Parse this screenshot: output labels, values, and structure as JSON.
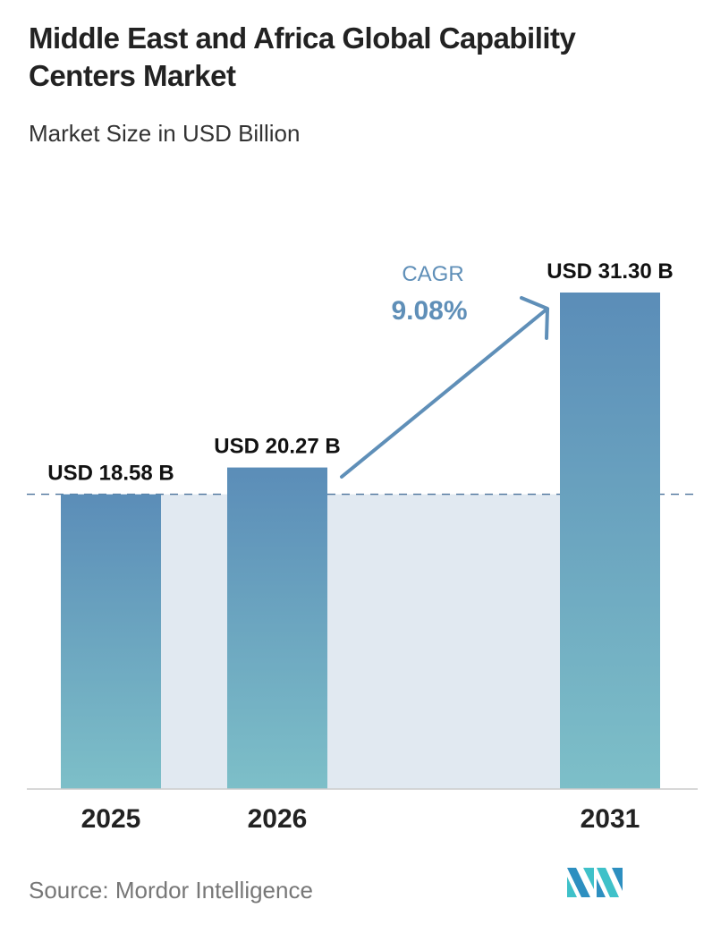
{
  "title": "Middle East and Africa Global Capability Centers Market",
  "subtitle": "Market Size in USD Billion",
  "source": "Source:  Mordor Intelligence",
  "logo_text": "Mordor Intelligence",
  "colors": {
    "bar_top": "#5b8db8",
    "bar_bottom": "#7dbfc8",
    "band": "#e1e9f1",
    "cagr": "#5f8fb8",
    "dash": "#5a7fa3"
  },
  "chart_data": {
    "type": "bar",
    "title": "Middle East and Africa Global Capability Centers Market",
    "ylabel": "Market Size in USD Billion",
    "categories": [
      "2025",
      "2026",
      "2031"
    ],
    "values": [
      18.58,
      20.27,
      31.3
    ],
    "value_labels": [
      "USD 18.58 B",
      "USD 20.27 B",
      "USD 31.30 B"
    ],
    "ylim": [
      0,
      31.3
    ],
    "grid": false,
    "annotation": {
      "label": "CAGR",
      "value": "9.08%"
    }
  }
}
